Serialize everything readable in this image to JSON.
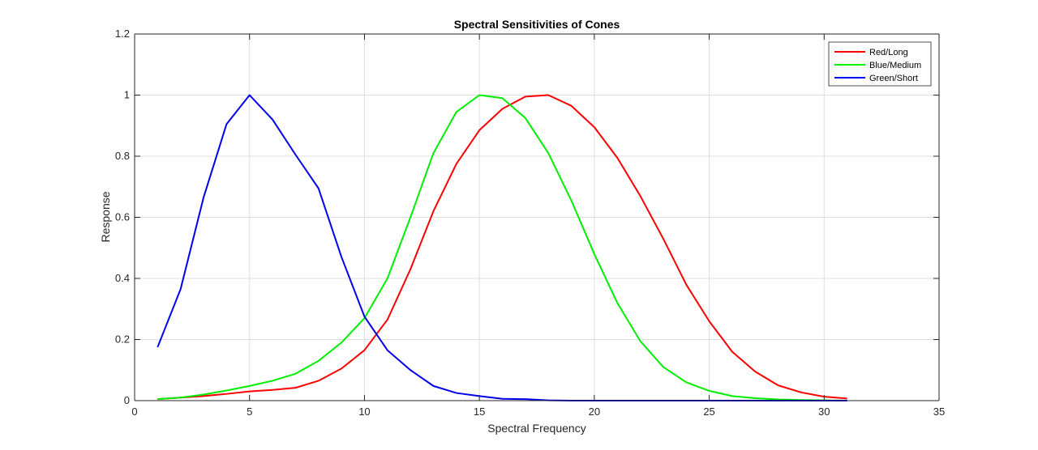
{
  "chart_data": {
    "type": "line",
    "title": "Spectral Sensitivities of Cones",
    "xlabel": "Spectral Frequency",
    "ylabel": "Response",
    "xlim": [
      0,
      35
    ],
    "ylim": [
      0,
      1.2
    ],
    "xticks": [
      0,
      5,
      10,
      15,
      20,
      25,
      30,
      35
    ],
    "yticks": [
      0,
      0.2,
      0.4,
      0.6,
      0.8,
      1,
      1.2
    ],
    "xtick_labels": [
      "0",
      "5",
      "10",
      "15",
      "20",
      "25",
      "30",
      "35"
    ],
    "ytick_labels": [
      "0",
      "0.2",
      "0.4",
      "0.6",
      "0.8",
      "1",
      "1.2"
    ],
    "grid": true,
    "legend_position": "top-right",
    "x": [
      1,
      2,
      3,
      4,
      5,
      6,
      7,
      8,
      9,
      10,
      11,
      12,
      13,
      14,
      15,
      16,
      17,
      18,
      19,
      20,
      21,
      22,
      23,
      24,
      25,
      26,
      27,
      28,
      29,
      30,
      31
    ],
    "series": [
      {
        "name": "Red/Long",
        "color": "#ff0000",
        "values": [
          0.005,
          0.01,
          0.015,
          0.022,
          0.03,
          0.035,
          0.042,
          0.065,
          0.105,
          0.165,
          0.265,
          0.43,
          0.62,
          0.775,
          0.885,
          0.955,
          0.995,
          1.0,
          0.965,
          0.895,
          0.795,
          0.67,
          0.53,
          0.38,
          0.26,
          0.16,
          0.095,
          0.05,
          0.027,
          0.013,
          0.007
        ]
      },
      {
        "name": "Blue/Medium",
        "color": "#00ee00",
        "values": [
          0.005,
          0.01,
          0.02,
          0.033,
          0.048,
          0.065,
          0.088,
          0.13,
          0.19,
          0.27,
          0.4,
          0.6,
          0.81,
          0.945,
          1.0,
          0.99,
          0.925,
          0.81,
          0.655,
          0.48,
          0.32,
          0.195,
          0.11,
          0.06,
          0.032,
          0.015,
          0.008,
          0.004,
          0.002,
          0.001,
          0.0
        ]
      },
      {
        "name": "Green/Short",
        "color": "#0000ee",
        "values": [
          0.175,
          0.365,
          0.665,
          0.905,
          1.0,
          0.92,
          0.805,
          0.695,
          0.47,
          0.275,
          0.165,
          0.1,
          0.048,
          0.025,
          0.015,
          0.006,
          0.005,
          0.001,
          0.0,
          0.0,
          0.0,
          0.0,
          0.0,
          0.0,
          0.0,
          0.0,
          0.0,
          0.0,
          0.0,
          0.0,
          0.0
        ]
      }
    ]
  }
}
